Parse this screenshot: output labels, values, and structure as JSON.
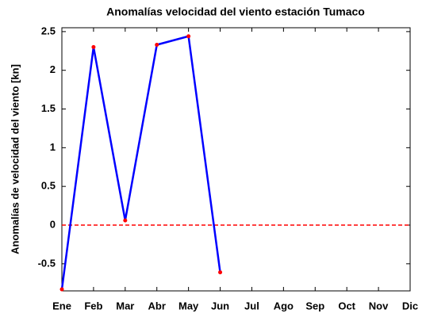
{
  "chart_data": {
    "type": "line",
    "title": "Anomalías velocidad del viento estación Tumaco",
    "y_label": "Anomalías de velocidad del viento [kn]",
    "categories": [
      "Ene",
      "Feb",
      "Mar",
      "Abr",
      "May",
      "Jun",
      "Jul",
      "Ago",
      "Sep",
      "Oct",
      "Nov",
      "Dic"
    ],
    "values": [
      -0.83,
      2.3,
      0.06,
      2.33,
      2.44,
      -0.61,
      null,
      null,
      null,
      null,
      null,
      null
    ],
    "color": "#0000ff",
    "marker_color": "#ff0000",
    "ylim": [
      -0.85,
      2.55
    ],
    "yticks": [
      -0.5,
      0,
      0.5,
      1,
      1.5,
      2,
      2.5
    ],
    "hline": 0,
    "hline_color": "#ff0000"
  }
}
